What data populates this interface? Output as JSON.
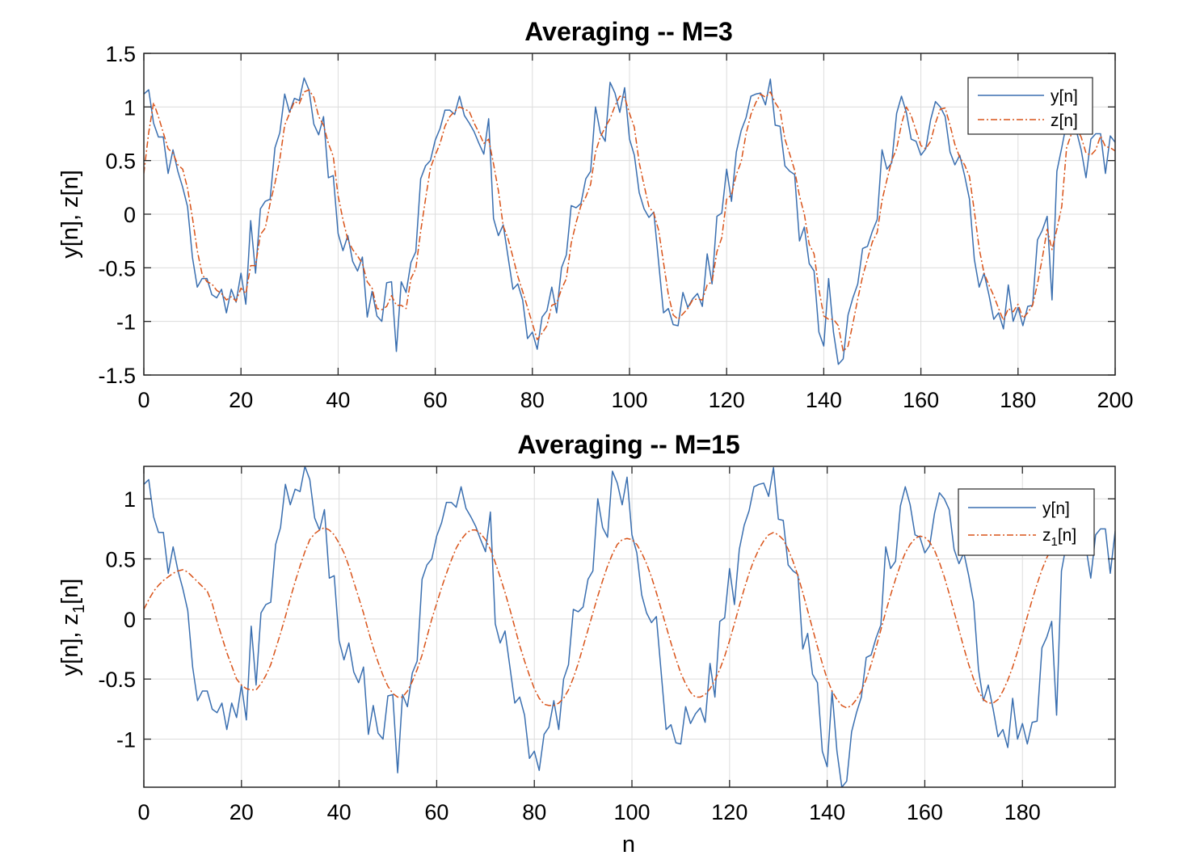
{
  "chart_data": [
    {
      "type": "line",
      "title": "Averaging -- M=3",
      "xlabel": "",
      "ylabel": "y[n], z[n]",
      "xlim": [
        0,
        200
      ],
      "ylim": [
        -1.5,
        1.5
      ],
      "xticks": [
        0,
        20,
        40,
        60,
        80,
        100,
        120,
        140,
        160,
        180,
        200
      ],
      "yticks": [
        -1.5,
        -1,
        -0.5,
        0,
        0.5,
        1,
        1.5
      ],
      "grid": true,
      "legend_position": "top-right",
      "series": [
        {
          "name": "y[n]",
          "style": "solid",
          "color": "#3a6fb0",
          "values": [
            1.12,
            1.16,
            0.85,
            0.72,
            0.72,
            0.38,
            0.6,
            0.4,
            0.25,
            0.07,
            -0.4,
            -0.68,
            -0.6,
            -0.6,
            -0.75,
            -0.78,
            -0.7,
            -0.92,
            -0.7,
            -0.82,
            -0.55,
            -0.84,
            -0.06,
            -0.55,
            0.05,
            0.12,
            0.14,
            0.62,
            0.76,
            1.12,
            0.95,
            1.08,
            1.06,
            1.27,
            1.16,
            0.84,
            0.74,
            0.91,
            0.34,
            0.36,
            -0.18,
            -0.34,
            -0.2,
            -0.44,
            -0.53,
            -0.4,
            -0.96,
            -0.72,
            -0.95,
            -1.0,
            -0.64,
            -0.63,
            -1.28,
            -0.63,
            -0.73,
            -0.45,
            -0.35,
            0.33,
            0.45,
            0.5,
            0.69,
            0.8,
            0.97,
            0.97,
            0.93,
            1.1,
            0.92,
            0.85,
            0.77,
            0.66,
            0.56,
            0.89,
            -0.04,
            -0.2,
            -0.1,
            -0.4,
            -0.7,
            -0.65,
            -0.8,
            -1.16,
            -1.1,
            -1.26,
            -0.96,
            -0.9,
            -0.68,
            -0.92,
            -0.5,
            -0.38,
            0.08,
            0.06,
            0.1,
            0.33,
            0.4,
            1.0,
            0.76,
            0.68,
            1.23,
            1.13,
            0.95,
            1.18,
            0.7,
            0.55,
            0.2,
            0.05,
            -0.03,
            0.02,
            -0.45,
            -0.92,
            -0.88,
            -1.03,
            -1.04,
            -0.73,
            -0.87,
            -0.79,
            -0.74,
            -0.86,
            -0.37,
            -0.65,
            -0.02,
            0.01,
            0.42,
            0.12,
            0.58,
            0.78,
            0.9,
            1.1,
            1.12,
            1.13,
            1.02,
            1.26,
            0.83,
            0.82,
            0.45,
            0.4,
            0.37,
            -0.25,
            -0.12,
            -0.46,
            -0.53,
            -1.1,
            -1.23,
            -0.6,
            -1.1,
            -1.4,
            -1.35,
            -0.94,
            -0.78,
            -0.65,
            -0.32,
            -0.3,
            -0.16,
            -0.05,
            0.6,
            0.42,
            0.48,
            0.94,
            1.1,
            0.95,
            0.7,
            0.68,
            0.55,
            0.61,
            0.88,
            1.05,
            1.0,
            0.91,
            0.58,
            0.46,
            0.55,
            0.36,
            0.14,
            -0.42,
            -0.68,
            -0.55,
            -0.75,
            -0.98,
            -0.92,
            -1.07,
            -0.66,
            -1.0,
            -0.87,
            -1.04,
            -0.86,
            -0.85,
            -0.24,
            -0.15,
            -0.02,
            -0.8,
            0.4,
            0.62,
            0.85,
            0.78,
            0.78,
            0.6,
            0.34,
            0.7,
            0.75,
            0.75,
            0.38,
            0.73,
            0.67,
            0.38,
            0.27
          ]
        },
        {
          "name": "z[n]",
          "style": "dashdot",
          "color": "#d95319",
          "values": [
            0.38,
            0.76,
            1.04,
            0.91,
            0.76,
            0.61,
            0.57,
            0.46,
            0.42,
            0.24,
            -0.03,
            -0.34,
            -0.56,
            -0.63,
            -0.65,
            -0.71,
            -0.74,
            -0.8,
            -0.77,
            -0.81,
            -0.69,
            -0.74,
            -0.48,
            -0.48,
            -0.19,
            -0.13,
            0.1,
            0.29,
            0.51,
            0.83,
            0.94,
            1.05,
            1.03,
            1.14,
            1.16,
            1.09,
            0.91,
            0.83,
            0.66,
            0.54,
            0.17,
            -0.05,
            -0.24,
            -0.33,
            -0.39,
            -0.46,
            -0.63,
            -0.69,
            -0.88,
            -0.89,
            -0.86,
            -0.76,
            -0.85,
            -0.85,
            -0.88,
            -0.6,
            -0.51,
            -0.16,
            0.14,
            0.43,
            0.55,
            0.66,
            0.82,
            0.91,
            0.96,
            1.0,
            0.98,
            0.96,
            0.85,
            0.76,
            0.66,
            0.7,
            0.47,
            0.22,
            -0.11,
            -0.23,
            -0.4,
            -0.58,
            -0.72,
            -0.87,
            -1.02,
            -1.17,
            -1.11,
            -1.04,
            -0.85,
            -0.83,
            -0.7,
            -0.6,
            -0.27,
            -0.08,
            0.08,
            0.16,
            0.28,
            0.58,
            0.72,
            0.81,
            0.89,
            1.01,
            1.1,
            1.09,
            0.94,
            0.81,
            0.48,
            0.27,
            0.07,
            0.01,
            -0.15,
            -0.45,
            -0.75,
            -0.94,
            -0.98,
            -0.93,
            -0.88,
            -0.8,
            -0.79,
            -0.8,
            -0.66,
            -0.63,
            -0.35,
            -0.22,
            0.14,
            0.18,
            0.37,
            0.49,
            0.75,
            0.93,
            1.04,
            1.12,
            1.09,
            1.14,
            1.04,
            0.97,
            0.7,
            0.56,
            0.41,
            0.17,
            0.0,
            -0.28,
            -0.37,
            -0.7,
            -0.95,
            -0.98,
            -0.98,
            -1.04,
            -1.28,
            -1.23,
            -1.02,
            -0.79,
            -0.58,
            -0.42,
            -0.26,
            -0.17,
            0.13,
            0.32,
            0.5,
            0.61,
            0.84,
            1.0,
            0.92,
            0.78,
            0.64,
            0.61,
            0.68,
            0.85,
            0.98,
            0.99,
            0.83,
            0.65,
            0.53,
            0.46,
            0.35,
            0.03,
            -0.32,
            -0.55,
            -0.66,
            -0.76,
            -0.88,
            -0.99,
            -0.88,
            -0.91,
            -0.84,
            -0.97,
            -0.92,
            -0.85,
            -0.65,
            -0.41,
            -0.14,
            -0.33,
            -0.14,
            0.07,
            0.62,
            0.75,
            0.8,
            0.72,
            0.57,
            0.55,
            0.6,
            0.73,
            0.63,
            0.62,
            0.59,
            0.59,
            0.47,
            0.44
          ]
        }
      ]
    },
    {
      "type": "line",
      "title": "Averaging -- M=15",
      "xlabel": "n",
      "ylabel": "y[n], z1[n]",
      "ylabel_main": "y[n], z",
      "ylabel_sub": "1",
      "ylabel_tail": "[n]",
      "xlim": [
        0,
        199
      ],
      "ylim": [
        -1.4,
        1.27
      ],
      "xticks": [
        0,
        20,
        40,
        60,
        80,
        100,
        120,
        140,
        160,
        180
      ],
      "yticks": [
        -1,
        -0.5,
        0,
        0.5,
        1
      ],
      "grid": true,
      "legend_position": "top-right",
      "series": [
        {
          "name": "y[n]",
          "style": "solid",
          "color": "#3a6fb0",
          "values": [
            1.12,
            1.16,
            0.85,
            0.72,
            0.72,
            0.38,
            0.6,
            0.4,
            0.25,
            0.07,
            -0.4,
            -0.68,
            -0.6,
            -0.6,
            -0.75,
            -0.78,
            -0.7,
            -0.92,
            -0.7,
            -0.82,
            -0.55,
            -0.84,
            -0.06,
            -0.55,
            0.05,
            0.12,
            0.14,
            0.62,
            0.76,
            1.12,
            0.95,
            1.08,
            1.06,
            1.27,
            1.16,
            0.84,
            0.74,
            0.91,
            0.34,
            0.36,
            -0.18,
            -0.34,
            -0.2,
            -0.44,
            -0.53,
            -0.4,
            -0.96,
            -0.72,
            -0.95,
            -1.0,
            -0.64,
            -0.63,
            -1.28,
            -0.63,
            -0.73,
            -0.45,
            -0.35,
            0.33,
            0.45,
            0.5,
            0.69,
            0.8,
            0.97,
            0.97,
            0.93,
            1.1,
            0.92,
            0.85,
            0.77,
            0.66,
            0.56,
            0.89,
            -0.04,
            -0.2,
            -0.1,
            -0.4,
            -0.7,
            -0.65,
            -0.8,
            -1.16,
            -1.1,
            -1.26,
            -0.96,
            -0.9,
            -0.68,
            -0.92,
            -0.5,
            -0.38,
            0.08,
            0.06,
            0.1,
            0.33,
            0.4,
            1.0,
            0.76,
            0.68,
            1.23,
            1.13,
            0.95,
            1.18,
            0.7,
            0.55,
            0.2,
            0.05,
            -0.03,
            0.02,
            -0.45,
            -0.92,
            -0.88,
            -1.03,
            -1.04,
            -0.73,
            -0.87,
            -0.79,
            -0.74,
            -0.86,
            -0.37,
            -0.65,
            -0.02,
            0.01,
            0.42,
            0.12,
            0.58,
            0.78,
            0.9,
            1.1,
            1.12,
            1.13,
            1.02,
            1.26,
            0.83,
            0.82,
            0.45,
            0.4,
            0.37,
            -0.25,
            -0.12,
            -0.46,
            -0.53,
            -1.1,
            -1.23,
            -0.6,
            -1.1,
            -1.4,
            -1.35,
            -0.94,
            -0.78,
            -0.65,
            -0.32,
            -0.3,
            -0.16,
            -0.05,
            0.6,
            0.42,
            0.48,
            0.94,
            1.1,
            0.95,
            0.7,
            0.68,
            0.55,
            0.61,
            0.88,
            1.05,
            1.0,
            0.91,
            0.58,
            0.46,
            0.55,
            0.36,
            0.14,
            -0.42,
            -0.68,
            -0.55,
            -0.75,
            -0.98,
            -0.92,
            -1.07,
            -0.66,
            -1.0,
            -0.87,
            -1.04,
            -0.86,
            -0.85,
            -0.24,
            -0.15,
            -0.02,
            -0.8,
            0.4,
            0.62,
            0.85,
            0.78,
            0.78,
            0.6,
            0.34,
            0.7,
            0.75,
            0.75,
            0.38,
            0.73,
            0.67,
            0.38,
            0.27
          ]
        },
        {
          "name": "z1[n]",
          "legend_main": "z",
          "legend_sub": "1",
          "legend_tail": "[n]",
          "style": "dashdot",
          "color": "#d95319",
          "values": [
            0.08,
            0.16,
            0.23,
            0.28,
            0.32,
            0.35,
            0.38,
            0.4,
            0.41,
            0.39,
            0.35,
            0.31,
            0.27,
            0.23,
            0.13,
            -0.02,
            -0.15,
            -0.28,
            -0.39,
            -0.5,
            -0.55,
            -0.58,
            -0.59,
            -0.59,
            -0.54,
            -0.47,
            -0.38,
            -0.25,
            -0.12,
            0.02,
            0.17,
            0.31,
            0.44,
            0.56,
            0.66,
            0.71,
            0.74,
            0.76,
            0.74,
            0.7,
            0.63,
            0.55,
            0.44,
            0.31,
            0.18,
            0.05,
            -0.1,
            -0.24,
            -0.36,
            -0.47,
            -0.56,
            -0.62,
            -0.65,
            -0.65,
            -0.6,
            -0.52,
            -0.42,
            -0.3,
            -0.15,
            0.0,
            0.13,
            0.26,
            0.38,
            0.49,
            0.59,
            0.66,
            0.71,
            0.74,
            0.74,
            0.71,
            0.66,
            0.58,
            0.47,
            0.35,
            0.22,
            0.08,
            -0.07,
            -0.22,
            -0.35,
            -0.47,
            -0.58,
            -0.66,
            -0.71,
            -0.72,
            -0.72,
            -0.7,
            -0.66,
            -0.59,
            -0.49,
            -0.37,
            -0.23,
            -0.09,
            0.05,
            0.19,
            0.32,
            0.44,
            0.54,
            0.62,
            0.66,
            0.67,
            0.66,
            0.62,
            0.55,
            0.46,
            0.35,
            0.22,
            0.08,
            -0.06,
            -0.2,
            -0.33,
            -0.45,
            -0.54,
            -0.61,
            -0.65,
            -0.65,
            -0.63,
            -0.58,
            -0.51,
            -0.42,
            -0.31,
            -0.18,
            -0.04,
            0.11,
            0.25,
            0.38,
            0.49,
            0.58,
            0.65,
            0.7,
            0.72,
            0.7,
            0.66,
            0.58,
            0.48,
            0.36,
            0.22,
            0.07,
            -0.08,
            -0.23,
            -0.37,
            -0.5,
            -0.6,
            -0.67,
            -0.72,
            -0.74,
            -0.72,
            -0.67,
            -0.6,
            -0.5,
            -0.38,
            -0.24,
            -0.09,
            0.06,
            0.2,
            0.33,
            0.45,
            0.55,
            0.62,
            0.67,
            0.69,
            0.68,
            0.64,
            0.57,
            0.47,
            0.35,
            0.21,
            0.06,
            -0.09,
            -0.24,
            -0.38,
            -0.5,
            -0.6,
            -0.67,
            -0.7,
            -0.7,
            -0.67,
            -0.6,
            -0.51,
            -0.4,
            -0.27,
            -0.13,
            0.02,
            0.16,
            0.29,
            0.41,
            0.51,
            0.59,
            0.65,
            0.69,
            0.7,
            0.69,
            0.66,
            0.61
          ]
        }
      ]
    }
  ]
}
